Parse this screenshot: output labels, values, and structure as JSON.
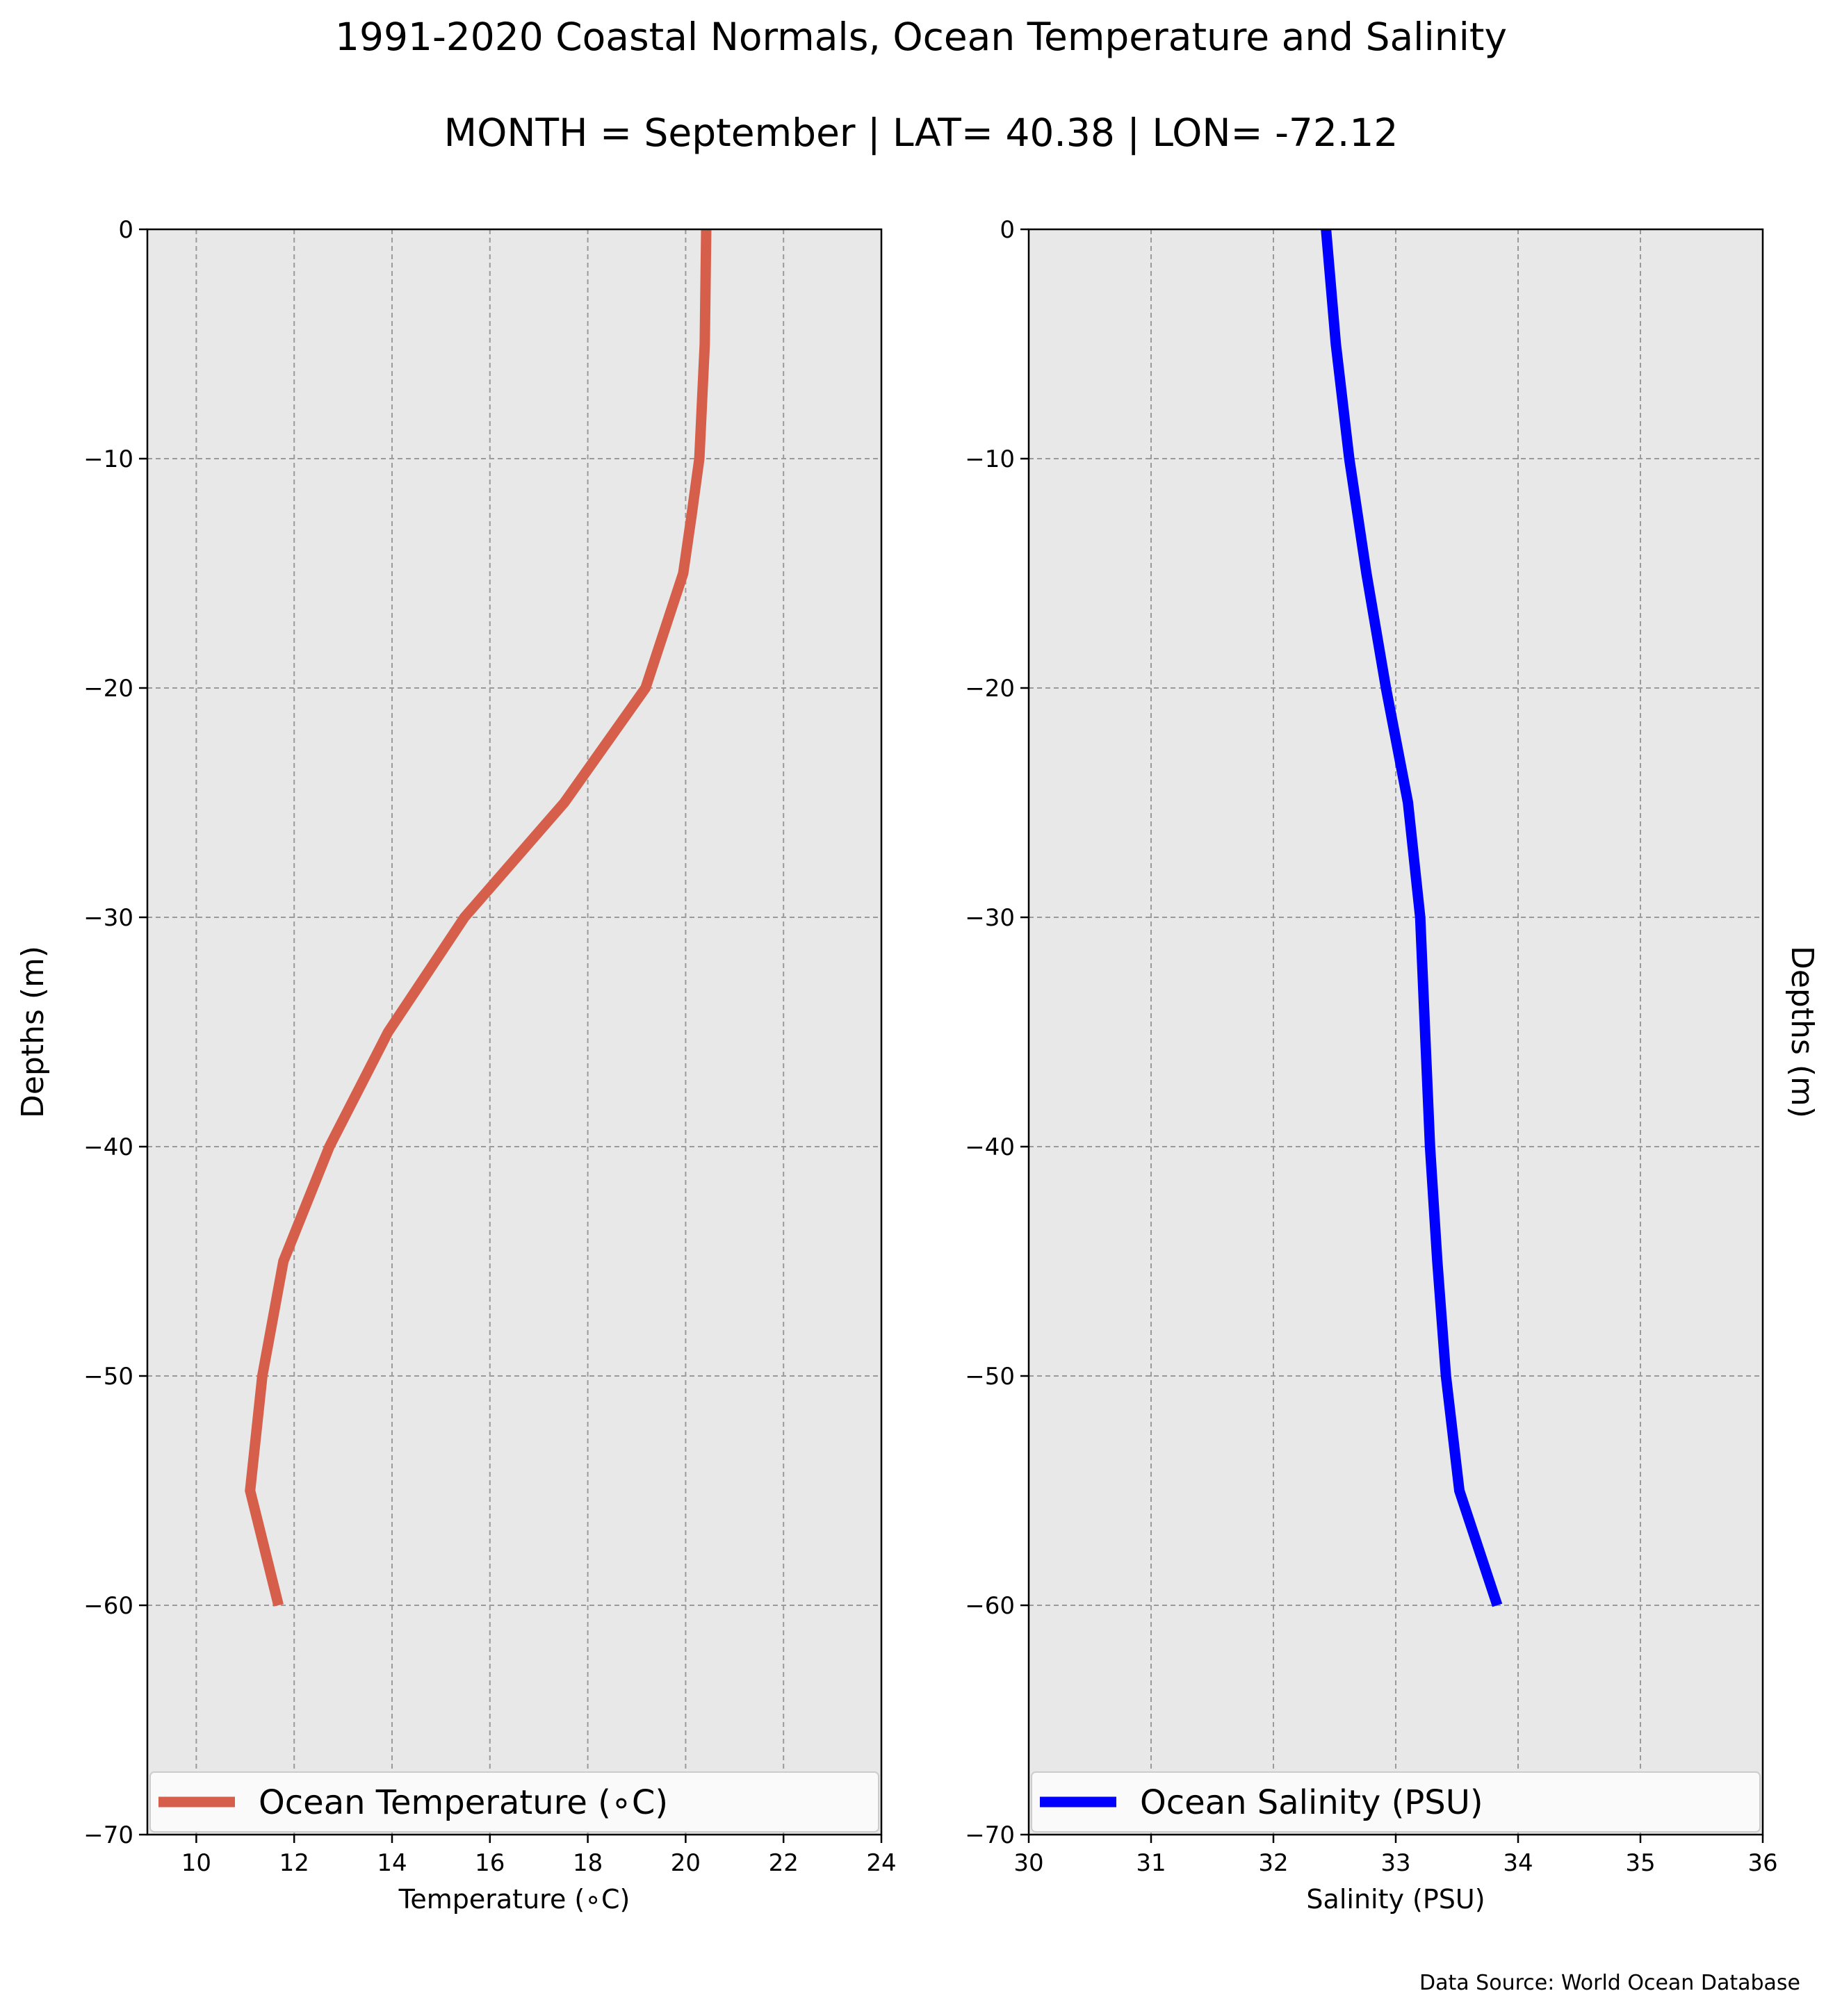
{
  "title": "1991-2020 Coastal Normals, Ocean Temperature and Salinity",
  "subtitle": "MONTH = September | LAT= 40.38 | LON= -72.12",
  "footer": "Data Source: World Ocean Database",
  "chart_data": [
    {
      "type": "line",
      "xlabel": "Temperature (∘C)",
      "ylabel": "Depths (m)",
      "xlim": [
        9,
        24
      ],
      "ylim": [
        -70,
        0
      ],
      "xticks": [
        10,
        12,
        14,
        16,
        18,
        20,
        22,
        24
      ],
      "yticks": [
        0,
        -10,
        -20,
        -30,
        -40,
        -50,
        -60,
        -70
      ],
      "grid": true,
      "legend_position": "bottom",
      "series": [
        {
          "name": "Ocean Temperature (∘C)",
          "color": "#d65f4b",
          "x": [
            20.42,
            20.39,
            20.28,
            20.12,
            19.95,
            19.18,
            17.52,
            15.48,
            13.92,
            12.72,
            11.78,
            11.35,
            11.1,
            11.68
          ],
          "y": [
            0,
            -5,
            -10,
            -12.5,
            -15,
            -20,
            -25,
            -30,
            -35,
            -40,
            -45,
            -50,
            -55,
            -60
          ]
        }
      ]
    },
    {
      "type": "line",
      "xlabel": "Salinity (PSU)",
      "ylabel": "Depths (m)",
      "xlim": [
        30,
        36
      ],
      "ylim": [
        -70,
        0
      ],
      "xticks": [
        30,
        31,
        32,
        33,
        34,
        35,
        36
      ],
      "yticks": [
        0,
        -10,
        -20,
        -30,
        -40,
        -50,
        -60,
        -70
      ],
      "grid": true,
      "legend_position": "bottom",
      "series": [
        {
          "name": "Ocean Salinity (PSU)",
          "color": "#0000ff",
          "x": [
            32.43,
            32.51,
            32.62,
            32.76,
            32.92,
            33.1,
            33.2,
            33.24,
            33.28,
            33.34,
            33.41,
            33.52,
            33.83
          ],
          "y": [
            0,
            -5,
            -10,
            -15,
            -20,
            -25,
            -30,
            -35,
            -40,
            -45,
            -50,
            -55,
            -60
          ]
        }
      ]
    }
  ]
}
